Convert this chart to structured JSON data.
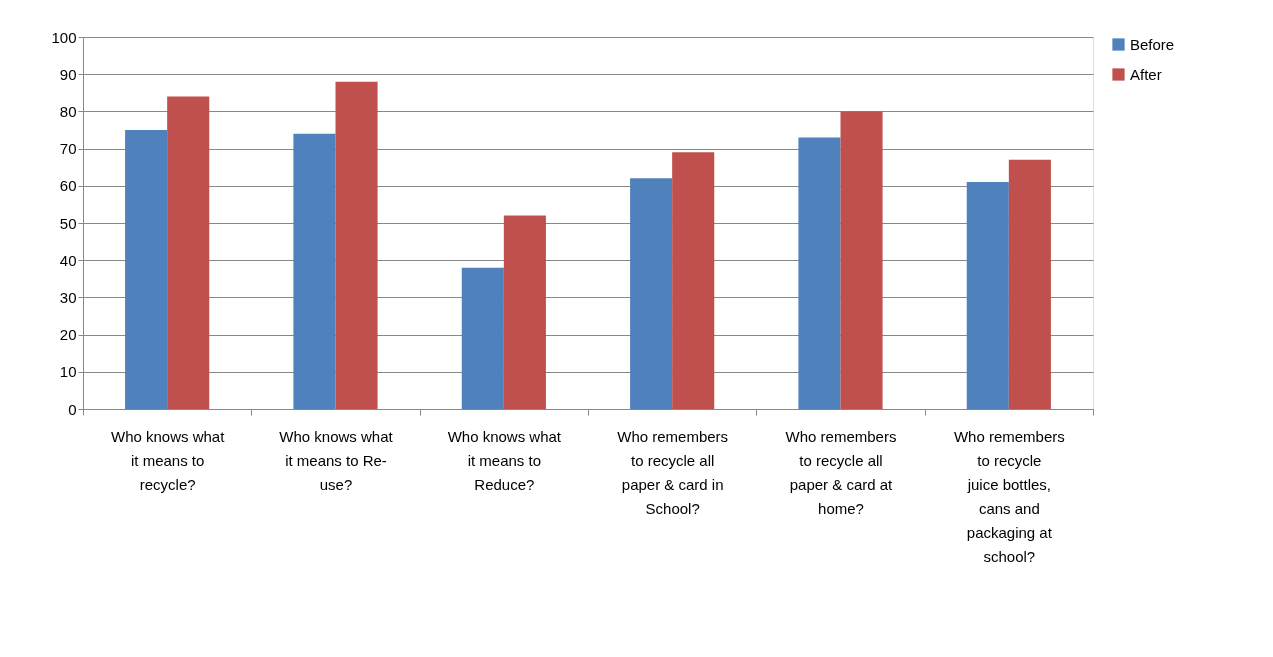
{
  "chart_data": {
    "type": "bar",
    "categories": [
      "Who knows what it means to recycle?",
      "Who knows what it means to Re-use?",
      "Who knows what it means to Reduce?",
      "Who remembers to recycle all paper & card in School?",
      "Who remembers to recycle all paper & card at home?",
      "Who remembers to recycle juice bottles, cans and packaging at school?"
    ],
    "series": [
      {
        "name": "Before",
        "color": "#4f81bd",
        "values": [
          75,
          74,
          38,
          62,
          73,
          61
        ]
      },
      {
        "name": "After",
        "color": "#c0504d",
        "values": [
          84,
          88,
          52,
          69,
          80,
          67
        ]
      }
    ],
    "ylim": [
      0,
      100
    ],
    "yticks": [
      0,
      10,
      20,
      30,
      40,
      50,
      60,
      70,
      80,
      90,
      100
    ],
    "grid": "y",
    "legend": "right"
  }
}
